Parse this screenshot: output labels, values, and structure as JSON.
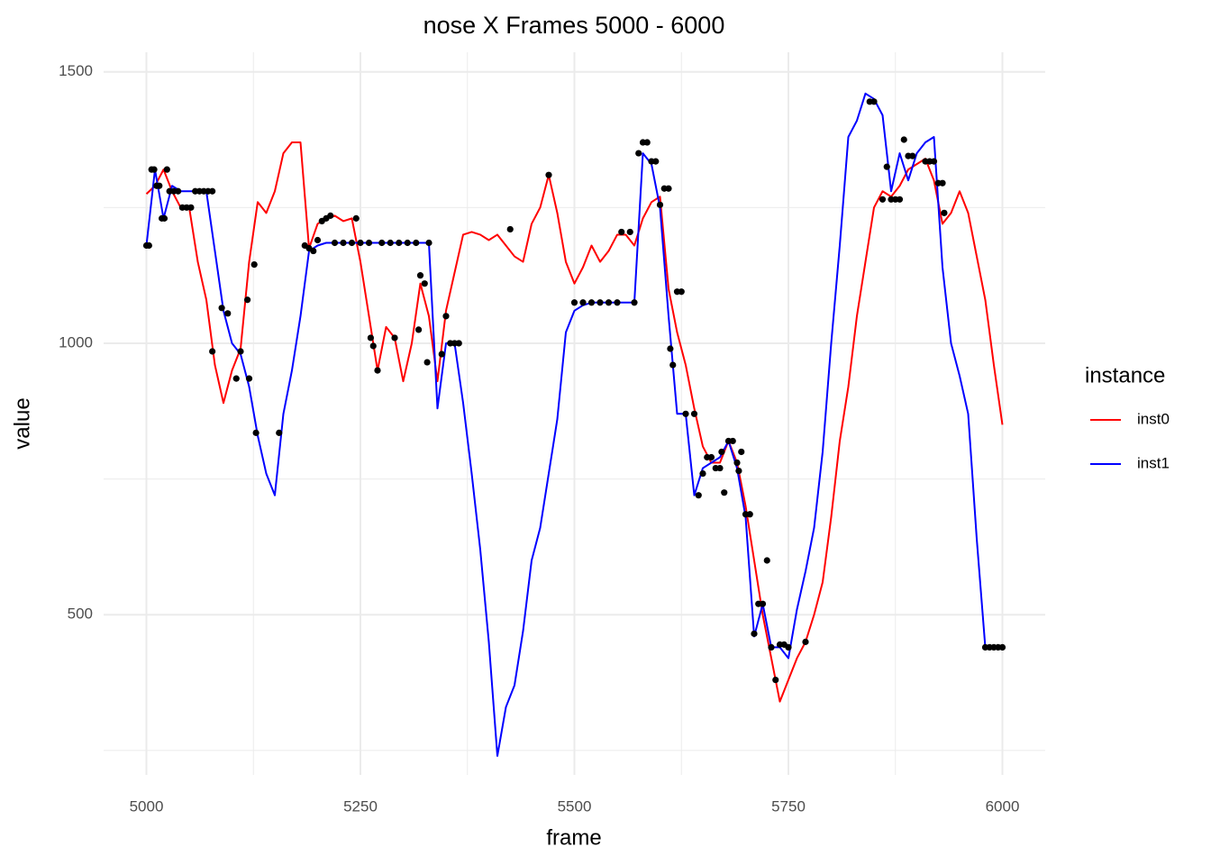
{
  "chart_data": {
    "type": "line",
    "title": "nose X Frames 5000 - 6000",
    "x_label": "frame",
    "y_label": "value",
    "legend_title": "instance",
    "legend_position": "right",
    "grid": true,
    "xlim": [
      4950,
      6050
    ],
    "ylim": [
      205,
      1536
    ],
    "xticks": [
      5000,
      5250,
      5500,
      5750,
      6000
    ],
    "yticks": [
      500,
      1000,
      1500
    ],
    "x": [
      5000,
      5010,
      5020,
      5030,
      5040,
      5050,
      5060,
      5070,
      5080,
      5090,
      5100,
      5110,
      5120,
      5130,
      5140,
      5150,
      5160,
      5170,
      5180,
      5190,
      5200,
      5210,
      5220,
      5230,
      5240,
      5250,
      5260,
      5270,
      5280,
      5290,
      5300,
      5310,
      5320,
      5330,
      5340,
      5350,
      5360,
      5370,
      5380,
      5390,
      5400,
      5410,
      5420,
      5430,
      5440,
      5450,
      5460,
      5470,
      5480,
      5490,
      5500,
      5510,
      5520,
      5530,
      5540,
      5550,
      5560,
      5570,
      5580,
      5590,
      5600,
      5610,
      5620,
      5630,
      5640,
      5650,
      5660,
      5670,
      5680,
      5690,
      5700,
      5710,
      5720,
      5730,
      5740,
      5750,
      5760,
      5770,
      5780,
      5790,
      5800,
      5810,
      5820,
      5830,
      5840,
      5850,
      5860,
      5870,
      5880,
      5890,
      5900,
      5910,
      5920,
      5930,
      5940,
      5950,
      5960,
      5970,
      5980,
      5990,
      6000
    ],
    "series": [
      {
        "name": "inst0",
        "color": "#ff0000",
        "values": [
          1275,
          1290,
          1320,
          1280,
          1250,
          1250,
          1150,
          1080,
          960,
          890,
          950,
          990,
          1150,
          1260,
          1240,
          1280,
          1350,
          1370,
          1370,
          1175,
          1220,
          1230,
          1235,
          1225,
          1230,
          1150,
          1050,
          950,
          1030,
          1010,
          930,
          1000,
          1110,
          1050,
          930,
          1060,
          1130,
          1200,
          1205,
          1200,
          1190,
          1200,
          1180,
          1160,
          1150,
          1220,
          1250,
          1310,
          1240,
          1150,
          1110,
          1140,
          1180,
          1150,
          1170,
          1200,
          1200,
          1180,
          1230,
          1260,
          1270,
          1100,
          1020,
          960,
          880,
          810,
          780,
          780,
          820,
          780,
          700,
          600,
          500,
          420,
          340,
          380,
          420,
          450,
          500,
          560,
          680,
          820,
          920,
          1050,
          1150,
          1250,
          1280,
          1270,
          1290,
          1320,
          1330,
          1340,
          1300,
          1220,
          1240,
          1280,
          1240,
          1160,
          1080,
          960,
          850
        ]
      },
      {
        "name": "inst1",
        "color": "#0000ff",
        "values": [
          1180,
          1320,
          1230,
          1290,
          1280,
          1280,
          1280,
          1280,
          1170,
          1060,
          1000,
          980,
          920,
          830,
          760,
          720,
          870,
          950,
          1050,
          1170,
          1180,
          1185,
          1185,
          1185,
          1185,
          1185,
          1185,
          1185,
          1185,
          1185,
          1185,
          1185,
          1185,
          1185,
          880,
          1000,
          1000,
          890,
          760,
          620,
          450,
          240,
          330,
          370,
          470,
          600,
          660,
          760,
          860,
          1020,
          1060,
          1070,
          1075,
          1075,
          1075,
          1075,
          1075,
          1075,
          1350,
          1330,
          1250,
          1050,
          870,
          870,
          720,
          770,
          780,
          790,
          820,
          770,
          680,
          460,
          520,
          440,
          440,
          420,
          510,
          580,
          660,
          800,
          1000,
          1180,
          1380,
          1410,
          1460,
          1450,
          1420,
          1280,
          1350,
          1300,
          1350,
          1370,
          1380,
          1140,
          1000,
          940,
          870,
          640,
          440,
          440,
          440
        ]
      }
    ],
    "points": {
      "color": "#000000",
      "x": [
        5000,
        5003,
        5006,
        5009,
        5012,
        5015,
        5018,
        5021,
        5024,
        5027,
        5032,
        5037,
        5042,
        5047,
        5052,
        5057,
        5062,
        5067,
        5072,
        5077,
        5077,
        5088,
        5095,
        5105,
        5110,
        5118,
        5120,
        5126,
        5128,
        5155,
        5185,
        5190,
        5195,
        5200,
        5205,
        5210,
        5215,
        5220,
        5230,
        5240,
        5245,
        5250,
        5260,
        5262,
        5265,
        5270,
        5275,
        5285,
        5290,
        5295,
        5305,
        5315,
        5318,
        5320,
        5325,
        5328,
        5330,
        5345,
        5350,
        5355,
        5360,
        5365,
        5425,
        5470,
        5500,
        5510,
        5520,
        5530,
        5540,
        5550,
        5555,
        5565,
        5570,
        5575,
        5580,
        5585,
        5590,
        5595,
        5600,
        5605,
        5610,
        5612,
        5615,
        5620,
        5625,
        5630,
        5640,
        5645,
        5650,
        5655,
        5660,
        5665,
        5670,
        5672,
        5675,
        5680,
        5685,
        5690,
        5692,
        5695,
        5700,
        5705,
        5710,
        5715,
        5720,
        5725,
        5730,
        5735,
        5740,
        5745,
        5750,
        5770,
        5845,
        5850,
        5860,
        5865,
        5870,
        5875,
        5880,
        5885,
        5890,
        5895,
        5910,
        5915,
        5920,
        5925,
        5930,
        5932,
        5980,
        5985,
        5990,
        5995,
        6000
      ],
      "values": [
        1180,
        1180,
        1320,
        1320,
        1290,
        1290,
        1230,
        1230,
        1320,
        1280,
        1280,
        1280,
        1250,
        1250,
        1250,
        1280,
        1280,
        1280,
        1280,
        1280,
        985,
        1065,
        1055,
        935,
        985,
        1080,
        935,
        1145,
        835,
        835,
        1180,
        1175,
        1170,
        1190,
        1225,
        1230,
        1235,
        1185,
        1185,
        1185,
        1230,
        1185,
        1185,
        1010,
        995,
        950,
        1185,
        1185,
        1010,
        1185,
        1185,
        1185,
        1025,
        1125,
        1110,
        965,
        1185,
        980,
        1050,
        1000,
        1000,
        1000,
        1210,
        1310,
        1075,
        1075,
        1075,
        1075,
        1075,
        1075,
        1205,
        1205,
        1075,
        1350,
        1370,
        1370,
        1335,
        1335,
        1255,
        1285,
        1285,
        990,
        960,
        1095,
        1095,
        870,
        870,
        720,
        760,
        790,
        790,
        770,
        770,
        800,
        725,
        820,
        820,
        780,
        765,
        800,
        685,
        685,
        465,
        520,
        520,
        600,
        440,
        380,
        445,
        445,
        440,
        450,
        1445,
        1445,
        1265,
        1325,
        1265,
        1265,
        1265,
        1375,
        1345,
        1345,
        1335,
        1335,
        1335,
        1295,
        1295,
        1240,
        440,
        440,
        440,
        440,
        440
      ]
    }
  }
}
